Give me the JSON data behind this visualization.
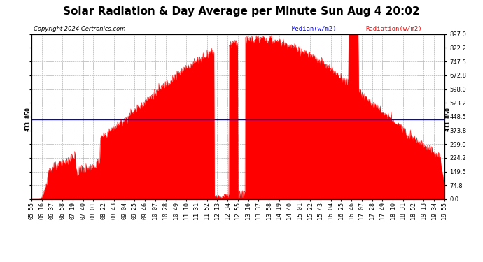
{
  "title": "Solar Radiation & Day Average per Minute Sun Aug 4 20:02",
  "copyright": "Copyright 2024 Certronics.com",
  "legend_median": "Median(w/m2)",
  "legend_radiation": "Radiation(w/m2)",
  "median_value": 433.85,
  "y_max": 897.0,
  "y_min": 0.0,
  "yticks": [
    0.0,
    74.8,
    149.5,
    224.2,
    299.0,
    373.8,
    448.5,
    523.2,
    598.0,
    672.8,
    747.5,
    822.2,
    897.0
  ],
  "ytick_labels": [
    "0.0",
    "74.8",
    "149.5",
    "224.2",
    "299.0",
    "373.8",
    "448.5",
    "523.2",
    "598.0",
    "672.8",
    "747.5",
    "822.2",
    "897.0"
  ],
  "fill_color": "#ff0000",
  "line_color": "#ff0000",
  "median_color": "#0000ff",
  "background_color": "#ffffff",
  "grid_color": "#888888",
  "title_fontsize": 11,
  "tick_label_fontsize": 6,
  "x_tick_labels": [
    "05:55",
    "06:16",
    "06:37",
    "06:58",
    "07:19",
    "07:40",
    "08:01",
    "08:22",
    "08:43",
    "09:04",
    "09:25",
    "09:46",
    "10:07",
    "10:28",
    "10:49",
    "11:10",
    "11:31",
    "11:52",
    "12:13",
    "12:34",
    "12:55",
    "13:16",
    "13:37",
    "13:58",
    "14:19",
    "14:40",
    "15:01",
    "15:22",
    "15:43",
    "16:04",
    "16:25",
    "16:46",
    "17:07",
    "17:28",
    "17:49",
    "18:10",
    "18:31",
    "18:52",
    "19:13",
    "19:34",
    "19:55"
  ],
  "left_annotation": "433.850",
  "right_annotation": "433.850",
  "peak_t": 400,
  "sigma": 230
}
